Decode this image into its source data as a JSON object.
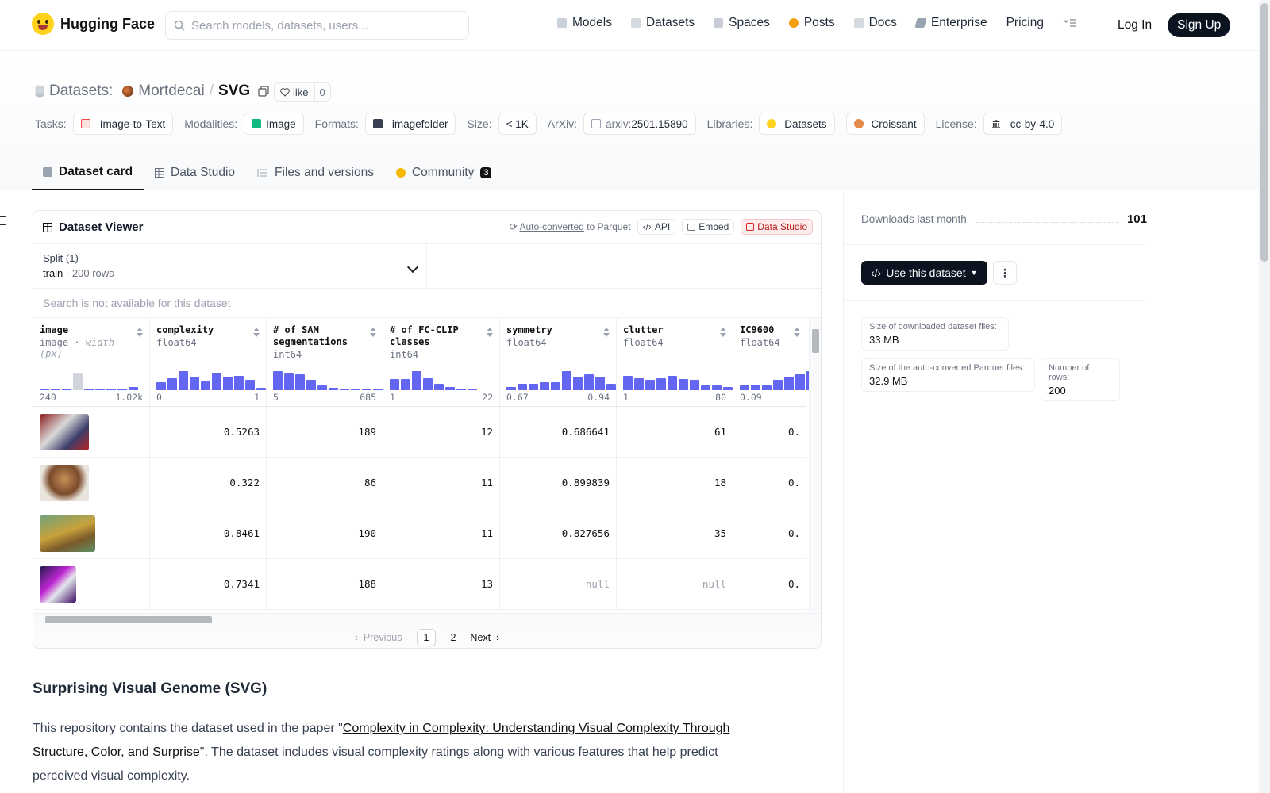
{
  "nav": {
    "logo_text": "Hugging Face",
    "search_placeholder": "Search models, datasets, users...",
    "links": [
      "Models",
      "Datasets",
      "Spaces",
      "Posts",
      "Docs",
      "Enterprise",
      "Pricing"
    ],
    "login": "Log In",
    "signup": "Sign Up"
  },
  "repo": {
    "section": "Datasets:",
    "user": "Mortdecai",
    "sep": "/",
    "name": "SVG",
    "like_label": "like",
    "like_count": "0"
  },
  "tags": {
    "tasks_label": "Tasks:",
    "task": "Image-to-Text",
    "modalities_label": "Modalities:",
    "modality": "Image",
    "formats_label": "Formats:",
    "format": "imagefolder",
    "size_label": "Size:",
    "size": "< 1K",
    "arxiv_label": "ArXiv:",
    "arxiv_prefix": "arxiv:",
    "arxiv_id": "2501.15890",
    "libraries_label": "Libraries:",
    "lib1": "Datasets",
    "lib2": "Croissant",
    "license_label": "License:",
    "license": "cc-by-4.0"
  },
  "tabs": {
    "card": "Dataset card",
    "studio": "Data Studio",
    "files": "Files and versions",
    "community": "Community",
    "community_count": "3"
  },
  "viewer": {
    "title": "Dataset Viewer",
    "auto_converted": "Auto-converted",
    "to_parquet": "to Parquet",
    "api": "API",
    "embed": "Embed",
    "studio": "Data Studio",
    "split_title": "Split (1)",
    "split_name": "train",
    "split_rows": "200 rows",
    "search_disabled": "Search is not available for this dataset",
    "columns": [
      {
        "name": "image",
        "type": "image",
        "sub": "width (px)",
        "min": "240",
        "max": "1.02k",
        "hist": [
          0.05,
          0.05,
          0.05,
          0.8,
          0.05,
          0.05,
          0.05,
          0.05,
          0.15
        ],
        "gray": [
          3
        ]
      },
      {
        "name": "complexity",
        "type": "float64",
        "min": "0",
        "max": "1",
        "hist": [
          0.35,
          0.55,
          0.85,
          0.6,
          0.4,
          0.8,
          0.6,
          0.65,
          0.45,
          0.1
        ],
        "gray": []
      },
      {
        "name": "# of SAM segmentations",
        "type": "int64",
        "min": "5",
        "max": "685",
        "hist": [
          0.85,
          0.8,
          0.7,
          0.45,
          0.2,
          0.1,
          0.08,
          0.0,
          0.0,
          0.03
        ],
        "gray": []
      },
      {
        "name": "# of FC-CLIP classes",
        "type": "int64",
        "min": "1",
        "max": "22",
        "hist": [
          0.5,
          0.5,
          0.85,
          0.55,
          0.3,
          0.15,
          0.08,
          0.05
        ],
        "gray": []
      },
      {
        "name": "symmetry",
        "type": "float64",
        "min": "0.67",
        "max": "0.94",
        "hist": [
          0.15,
          0.3,
          0.3,
          0.35,
          0.35,
          0.85,
          0.6,
          0.7,
          0.6,
          0.3,
          0.85
        ],
        "gray": [
          10
        ]
      },
      {
        "name": "clutter",
        "type": "float64",
        "min": "1",
        "max": "80",
        "hist": [
          0.65,
          0.55,
          0.45,
          0.55,
          0.65,
          0.5,
          0.45,
          0.2,
          0.2,
          0.15,
          0.85
        ],
        "gray": [
          10
        ]
      },
      {
        "name": "IC9600",
        "type": "float64",
        "min": "0.09",
        "max": "",
        "hist": [
          0.2,
          0.25,
          0.2,
          0.45,
          0.6,
          0.75,
          0.85
        ],
        "gray": []
      }
    ],
    "rows": [
      [
        "",
        "0.5263",
        "189",
        "12",
        "0.686641",
        "61",
        "0."
      ],
      [
        "",
        "0.322",
        "86",
        "11",
        "0.899839",
        "18",
        "0."
      ],
      [
        "",
        "0.8461",
        "190",
        "11",
        "0.827656",
        "35",
        "0."
      ],
      [
        "",
        "0.7341",
        "188",
        "13",
        "null",
        "null",
        "0."
      ]
    ],
    "pager": {
      "prev": "Previous",
      "p1": "1",
      "p2": "2",
      "next": "Next"
    }
  },
  "readme": {
    "heading": "Surprising Visual Genome (SVG)",
    "p_before": "This repository contains the dataset used in the paper \"",
    "p_link": "Complexity in Complexity: Understanding Visual Complexity Through Structure, Color, and Surprise",
    "p_after": "\". The dataset includes visual complexity ratings along with various features that help predict perceived visual complexity."
  },
  "side": {
    "downloads_label": "Downloads last month",
    "downloads": "101",
    "use_button": "Use this dataset",
    "stat1_k": "Size of downloaded dataset files:",
    "stat1_v": "33 MB",
    "stat2_k": "Size of the auto-converted Parquet files:",
    "stat2_v": "32.9 MB",
    "stat3_k": "Number of rows:",
    "stat3_v": "200"
  }
}
